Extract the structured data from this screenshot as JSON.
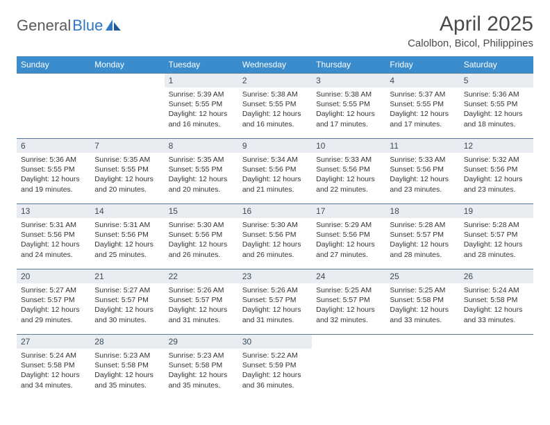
{
  "brand": {
    "name_part1": "General",
    "name_part2": "Blue",
    "text_color": "#5a5a5a",
    "accent_color": "#2f78c4"
  },
  "title": "April 2025",
  "location": "Calolbon, Bicol, Philippines",
  "header_bg": "#3b8ccc",
  "header_text_color": "#ffffff",
  "daynum_bg": "#e9edf1",
  "daynum_border": "#5a7a9a",
  "weekdays": [
    "Sunday",
    "Monday",
    "Tuesday",
    "Wednesday",
    "Thursday",
    "Friday",
    "Saturday"
  ],
  "weeks": [
    {
      "days": [
        {
          "n": "",
          "sunrise": "",
          "sunset": "",
          "daylight": ""
        },
        {
          "n": "",
          "sunrise": "",
          "sunset": "",
          "daylight": ""
        },
        {
          "n": "1",
          "sunrise": "Sunrise: 5:39 AM",
          "sunset": "Sunset: 5:55 PM",
          "daylight": "Daylight: 12 hours and 16 minutes."
        },
        {
          "n": "2",
          "sunrise": "Sunrise: 5:38 AM",
          "sunset": "Sunset: 5:55 PM",
          "daylight": "Daylight: 12 hours and 16 minutes."
        },
        {
          "n": "3",
          "sunrise": "Sunrise: 5:38 AM",
          "sunset": "Sunset: 5:55 PM",
          "daylight": "Daylight: 12 hours and 17 minutes."
        },
        {
          "n": "4",
          "sunrise": "Sunrise: 5:37 AM",
          "sunset": "Sunset: 5:55 PM",
          "daylight": "Daylight: 12 hours and 17 minutes."
        },
        {
          "n": "5",
          "sunrise": "Sunrise: 5:36 AM",
          "sunset": "Sunset: 5:55 PM",
          "daylight": "Daylight: 12 hours and 18 minutes."
        }
      ]
    },
    {
      "days": [
        {
          "n": "6",
          "sunrise": "Sunrise: 5:36 AM",
          "sunset": "Sunset: 5:55 PM",
          "daylight": "Daylight: 12 hours and 19 minutes."
        },
        {
          "n": "7",
          "sunrise": "Sunrise: 5:35 AM",
          "sunset": "Sunset: 5:55 PM",
          "daylight": "Daylight: 12 hours and 20 minutes."
        },
        {
          "n": "8",
          "sunrise": "Sunrise: 5:35 AM",
          "sunset": "Sunset: 5:55 PM",
          "daylight": "Daylight: 12 hours and 20 minutes."
        },
        {
          "n": "9",
          "sunrise": "Sunrise: 5:34 AM",
          "sunset": "Sunset: 5:56 PM",
          "daylight": "Daylight: 12 hours and 21 minutes."
        },
        {
          "n": "10",
          "sunrise": "Sunrise: 5:33 AM",
          "sunset": "Sunset: 5:56 PM",
          "daylight": "Daylight: 12 hours and 22 minutes."
        },
        {
          "n": "11",
          "sunrise": "Sunrise: 5:33 AM",
          "sunset": "Sunset: 5:56 PM",
          "daylight": "Daylight: 12 hours and 23 minutes."
        },
        {
          "n": "12",
          "sunrise": "Sunrise: 5:32 AM",
          "sunset": "Sunset: 5:56 PM",
          "daylight": "Daylight: 12 hours and 23 minutes."
        }
      ]
    },
    {
      "days": [
        {
          "n": "13",
          "sunrise": "Sunrise: 5:31 AM",
          "sunset": "Sunset: 5:56 PM",
          "daylight": "Daylight: 12 hours and 24 minutes."
        },
        {
          "n": "14",
          "sunrise": "Sunrise: 5:31 AM",
          "sunset": "Sunset: 5:56 PM",
          "daylight": "Daylight: 12 hours and 25 minutes."
        },
        {
          "n": "15",
          "sunrise": "Sunrise: 5:30 AM",
          "sunset": "Sunset: 5:56 PM",
          "daylight": "Daylight: 12 hours and 26 minutes."
        },
        {
          "n": "16",
          "sunrise": "Sunrise: 5:30 AM",
          "sunset": "Sunset: 5:56 PM",
          "daylight": "Daylight: 12 hours and 26 minutes."
        },
        {
          "n": "17",
          "sunrise": "Sunrise: 5:29 AM",
          "sunset": "Sunset: 5:56 PM",
          "daylight": "Daylight: 12 hours and 27 minutes."
        },
        {
          "n": "18",
          "sunrise": "Sunrise: 5:28 AM",
          "sunset": "Sunset: 5:57 PM",
          "daylight": "Daylight: 12 hours and 28 minutes."
        },
        {
          "n": "19",
          "sunrise": "Sunrise: 5:28 AM",
          "sunset": "Sunset: 5:57 PM",
          "daylight": "Daylight: 12 hours and 28 minutes."
        }
      ]
    },
    {
      "days": [
        {
          "n": "20",
          "sunrise": "Sunrise: 5:27 AM",
          "sunset": "Sunset: 5:57 PM",
          "daylight": "Daylight: 12 hours and 29 minutes."
        },
        {
          "n": "21",
          "sunrise": "Sunrise: 5:27 AM",
          "sunset": "Sunset: 5:57 PM",
          "daylight": "Daylight: 12 hours and 30 minutes."
        },
        {
          "n": "22",
          "sunrise": "Sunrise: 5:26 AM",
          "sunset": "Sunset: 5:57 PM",
          "daylight": "Daylight: 12 hours and 31 minutes."
        },
        {
          "n": "23",
          "sunrise": "Sunrise: 5:26 AM",
          "sunset": "Sunset: 5:57 PM",
          "daylight": "Daylight: 12 hours and 31 minutes."
        },
        {
          "n": "24",
          "sunrise": "Sunrise: 5:25 AM",
          "sunset": "Sunset: 5:57 PM",
          "daylight": "Daylight: 12 hours and 32 minutes."
        },
        {
          "n": "25",
          "sunrise": "Sunrise: 5:25 AM",
          "sunset": "Sunset: 5:58 PM",
          "daylight": "Daylight: 12 hours and 33 minutes."
        },
        {
          "n": "26",
          "sunrise": "Sunrise: 5:24 AM",
          "sunset": "Sunset: 5:58 PM",
          "daylight": "Daylight: 12 hours and 33 minutes."
        }
      ]
    },
    {
      "days": [
        {
          "n": "27",
          "sunrise": "Sunrise: 5:24 AM",
          "sunset": "Sunset: 5:58 PM",
          "daylight": "Daylight: 12 hours and 34 minutes."
        },
        {
          "n": "28",
          "sunrise": "Sunrise: 5:23 AM",
          "sunset": "Sunset: 5:58 PM",
          "daylight": "Daylight: 12 hours and 35 minutes."
        },
        {
          "n": "29",
          "sunrise": "Sunrise: 5:23 AM",
          "sunset": "Sunset: 5:58 PM",
          "daylight": "Daylight: 12 hours and 35 minutes."
        },
        {
          "n": "30",
          "sunrise": "Sunrise: 5:22 AM",
          "sunset": "Sunset: 5:59 PM",
          "daylight": "Daylight: 12 hours and 36 minutes."
        },
        {
          "n": "",
          "sunrise": "",
          "sunset": "",
          "daylight": ""
        },
        {
          "n": "",
          "sunrise": "",
          "sunset": "",
          "daylight": ""
        },
        {
          "n": "",
          "sunrise": "",
          "sunset": "",
          "daylight": ""
        }
      ]
    }
  ]
}
